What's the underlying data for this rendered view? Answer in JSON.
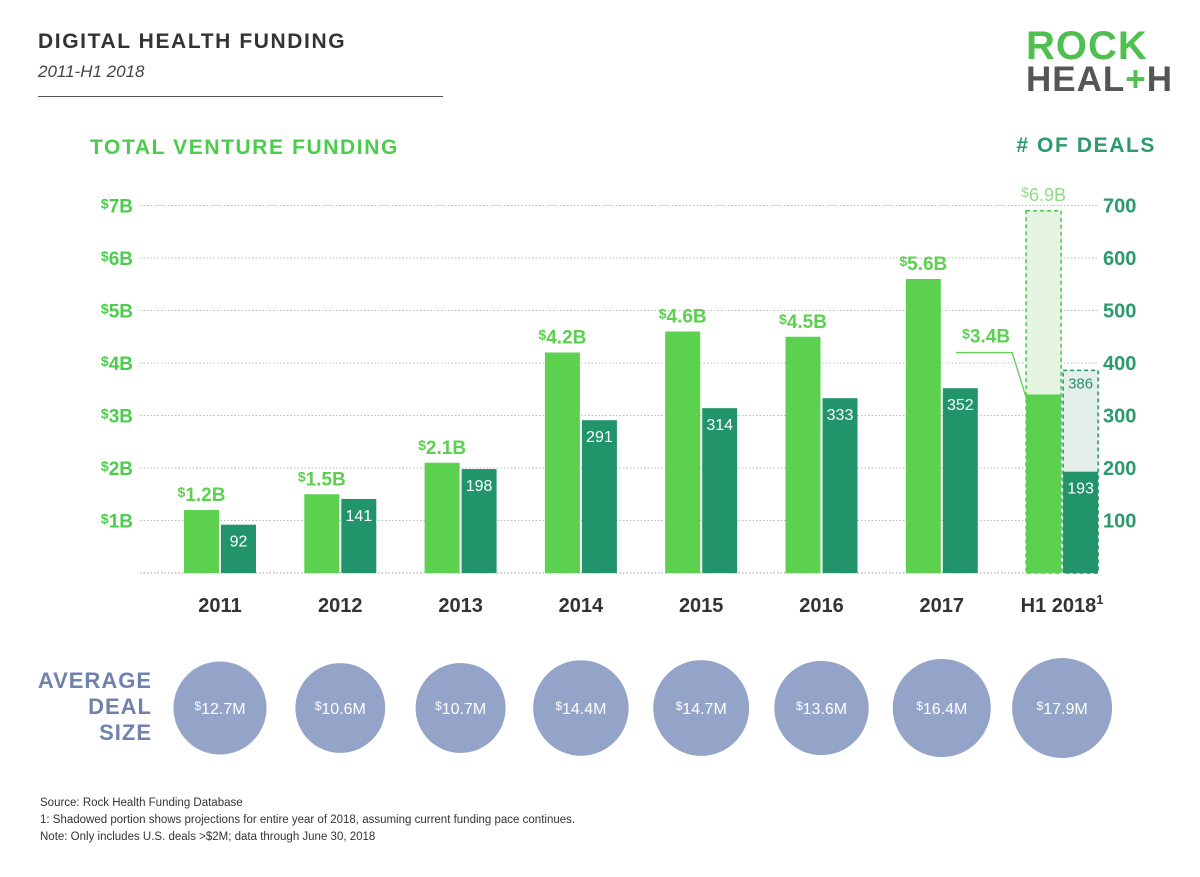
{
  "header": {
    "title": "DIGITAL HEALTH FUNDING",
    "subtitle": "2011-H1 2018"
  },
  "logo": {
    "line1": "ROCK",
    "line2_start": "HEAL",
    "line2_plus": "+",
    "line2_end": "H"
  },
  "colors": {
    "funding": "#5cd04f",
    "deals": "#22946a",
    "projection_fill": "#e6f5e2",
    "projection_border": "#4fbf4f",
    "bubble": "#93a4c8",
    "axis_text_left": "#4ccc4c",
    "axis_text_right": "#2a9b6a",
    "avg_label": "#6f82ad"
  },
  "average_deal_size": {
    "label_lines": [
      "AVERAGE",
      "DEAL",
      "SIZE"
    ]
  },
  "chart_data": {
    "type": "bar",
    "categories": [
      "2011",
      "2012",
      "2013",
      "2014",
      "2015",
      "2016",
      "2017",
      "H1 2018"
    ],
    "category_footnote": {
      "H1 2018": "1"
    },
    "left_axis": {
      "title": "TOTAL VENTURE FUNDING",
      "range": [
        0,
        7
      ],
      "ticks": [
        1,
        2,
        3,
        4,
        5,
        6,
        7
      ],
      "tick_labels": [
        "1B",
        "2B",
        "3B",
        "4B",
        "5B",
        "6B",
        "7B"
      ],
      "tick_prefix": "$"
    },
    "right_axis": {
      "title": "# OF DEALS",
      "range": [
        0,
        700
      ],
      "ticks": [
        100,
        200,
        300,
        400,
        500,
        600,
        700
      ],
      "tick_labels": [
        "100",
        "200",
        "300",
        "400",
        "500",
        "600",
        "700"
      ]
    },
    "grid": true,
    "series": [
      {
        "axis": "left",
        "values": [
          1.2,
          1.5,
          2.1,
          4.2,
          4.6,
          4.5,
          5.6,
          3.4
        ],
        "labels": [
          "1.2B",
          "1.5B",
          "2.1B",
          "4.2B",
          "4.6B",
          "4.5B",
          "5.6B",
          "3.4B"
        ],
        "label_prefix": "$"
      },
      {
        "axis": "right",
        "values": [
          92,
          141,
          198,
          291,
          314,
          333,
          352,
          193
        ],
        "labels": [
          "92",
          "141",
          "198",
          "291",
          "314",
          "333",
          "352",
          "193"
        ]
      }
    ],
    "projection": {
      "category": "H1 2018",
      "funding_value": 6.9,
      "funding_label": "6.9B",
      "funding_prefix": "$",
      "deals_value": 386,
      "deals_label": "386"
    },
    "average_deal_size": {
      "values": [
        12.7,
        10.6,
        10.7,
        14.4,
        14.7,
        13.6,
        16.4,
        17.9
      ],
      "labels": [
        "12.7M",
        "10.6M",
        "10.7M",
        "14.4M",
        "14.7M",
        "13.6M",
        "16.4M",
        "17.9M"
      ],
      "label_prefix": "$"
    }
  },
  "footnotes": [
    "Source: Rock Health Funding Database",
    "1: Shadowed portion shows projections for entire year of 2018, assuming current funding pace continues.",
    "Note: Only includes U.S. deals >$2M; data through June 30, 2018"
  ]
}
